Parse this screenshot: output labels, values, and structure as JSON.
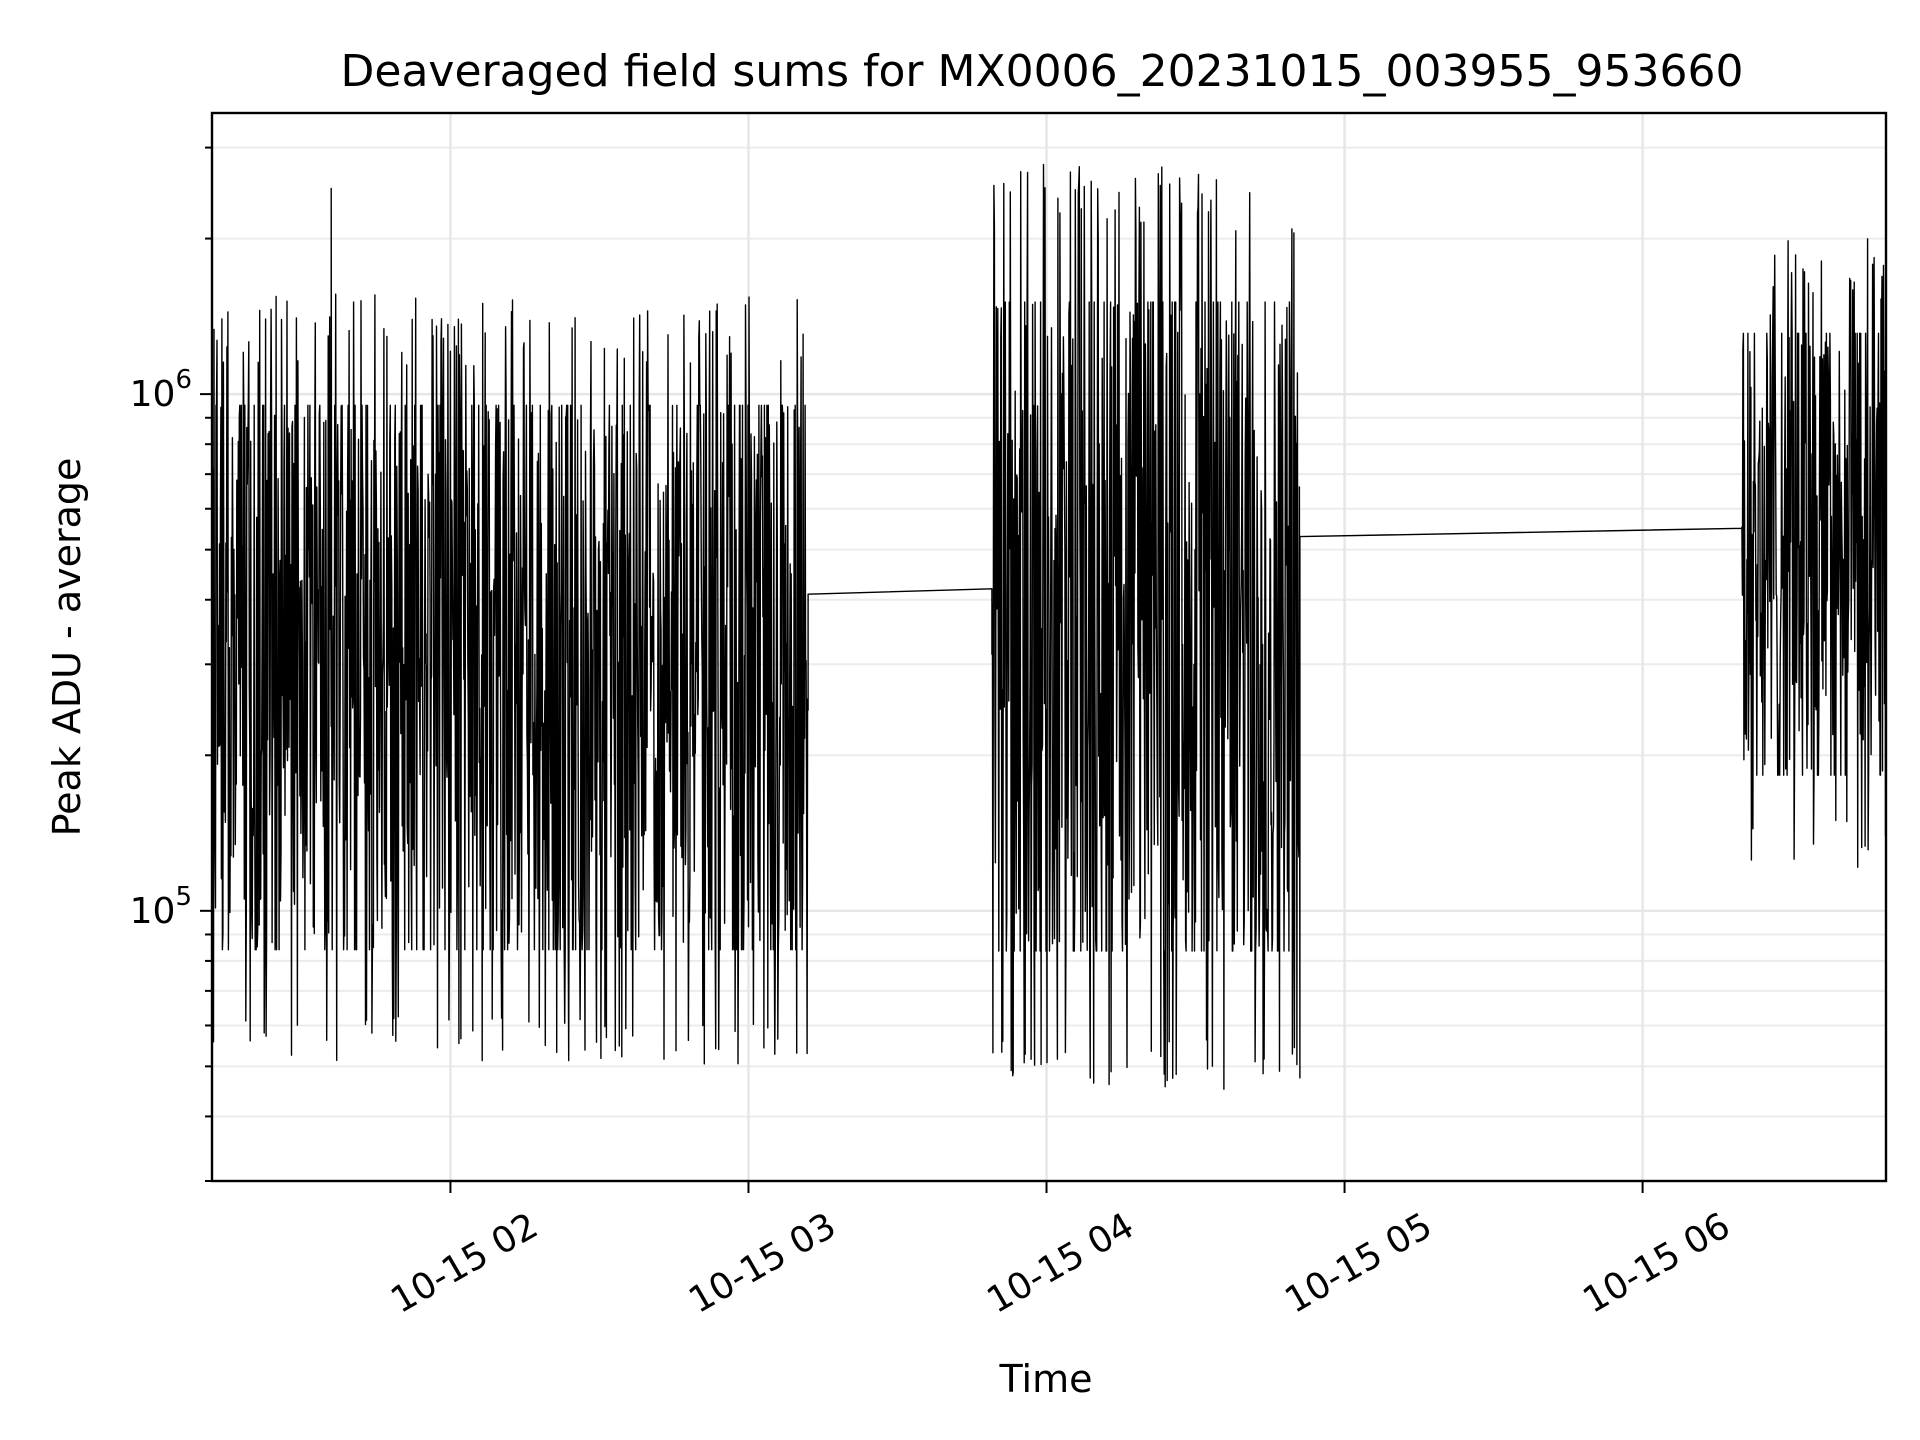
{
  "chart_data": {
    "type": "line",
    "title": "Deaveraged field sums for MX0006_20231015_003955_953660",
    "xlabel": "Time",
    "ylabel": "Peak ADU - average",
    "yscale": "log",
    "xlim": [
      "2023-10-15 01:12",
      "2023-10-15 06:49"
    ],
    "ylim": [
      30000,
      3500000
    ],
    "grid": true,
    "x_ticks": [
      {
        "at": "2023-10-15 02:00",
        "label": "10-15 02"
      },
      {
        "at": "2023-10-15 03:00",
        "label": "10-15 03"
      },
      {
        "at": "2023-10-15 04:00",
        "label": "10-15 04"
      },
      {
        "at": "2023-10-15 05:00",
        "label": "10-15 05"
      },
      {
        "at": "2023-10-15 06:00",
        "label": "10-15 06"
      }
    ],
    "y_ticks": [
      {
        "value": 100000,
        "base": "10",
        "exp": "5"
      },
      {
        "value": 1000000,
        "base": "10",
        "exp": "6"
      }
    ],
    "color": "#000000",
    "segments": [
      {
        "start": "2023-10-15 01:12",
        "end": "2023-10-15 03:12",
        "low": 50000,
        "high": 1600000,
        "spike": 2500000
      },
      {
        "start": "2023-10-15 03:12",
        "end": "2023-10-15 03:49",
        "low": 410000,
        "high": 420000
      },
      {
        "start": "2023-10-15 03:49",
        "end": "2023-10-15 04:51",
        "low": 45000,
        "high": 2800000
      },
      {
        "start": "2023-10-15 04:51",
        "end": "2023-10-15 06:20",
        "low": 530000,
        "high": 550000
      },
      {
        "start": "2023-10-15 06:20",
        "end": "2023-10-15 06:49",
        "low": 120000,
        "high": 2000000
      }
    ]
  }
}
